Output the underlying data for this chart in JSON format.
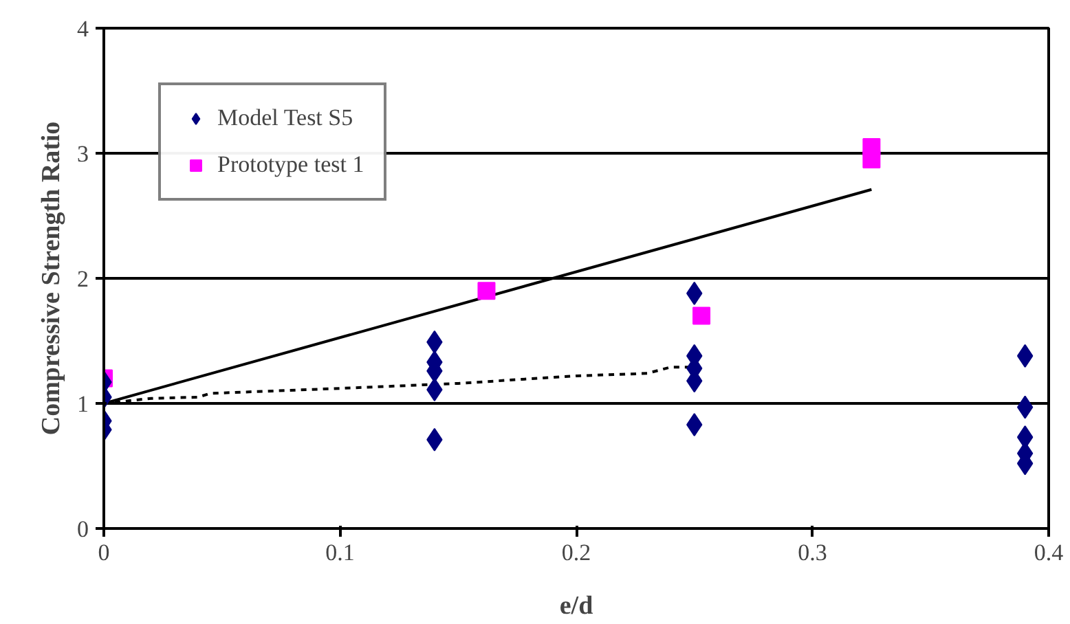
{
  "chart_data": {
    "type": "scatter",
    "xlabel": "e/d",
    "ylabel": "Compressive Strength Ratio",
    "xlim": [
      0,
      0.4
    ],
    "ylim": [
      0,
      4
    ],
    "xticks": [
      0,
      0.1,
      0.2,
      0.3,
      0.4
    ],
    "yticks": [
      0,
      1,
      2,
      3,
      4
    ],
    "grid": "y",
    "legend": "top left",
    "series": [
      {
        "name": "Model Test S5",
        "color": "#000080",
        "marker": "diamond",
        "x": [
          0,
          0,
          0,
          0,
          0.14,
          0.14,
          0.14,
          0.14,
          0.14,
          0.25,
          0.25,
          0.25,
          0.25,
          0.25,
          0.39,
          0.39,
          0.39,
          0.39,
          0.39
        ],
        "values": [
          1.17,
          1.05,
          0.86,
          0.79,
          1.49,
          1.33,
          1.26,
          1.11,
          0.71,
          1.88,
          1.38,
          1.28,
          1.18,
          0.83,
          1.38,
          0.97,
          0.73,
          0.6,
          0.52
        ]
      },
      {
        "name": "Prototype test 1",
        "color": "#ff00ff",
        "marker": "square",
        "x": [
          0,
          0.162,
          0.253,
          0.325,
          0.325
        ],
        "values": [
          1.2,
          1.9,
          1.7,
          3.05,
          2.95
        ]
      },
      {
        "type": "line",
        "color": "#000000",
        "marker": "none",
        "line_style": "solid",
        "x": [
          0,
          0.325
        ],
        "values": [
          1,
          2.71
        ]
      },
      {
        "type": "line",
        "color": "#000000",
        "marker": "none",
        "line_style": "dashed",
        "x": [
          0,
          0.02,
          0.04,
          0.045,
          0.1,
          0.15,
          0.2,
          0.23,
          0.24,
          0.25
        ],
        "values": [
          1,
          1.04,
          1.05,
          1.08,
          1.12,
          1.16,
          1.22,
          1.24,
          1.29,
          1.29
        ]
      }
    ]
  }
}
